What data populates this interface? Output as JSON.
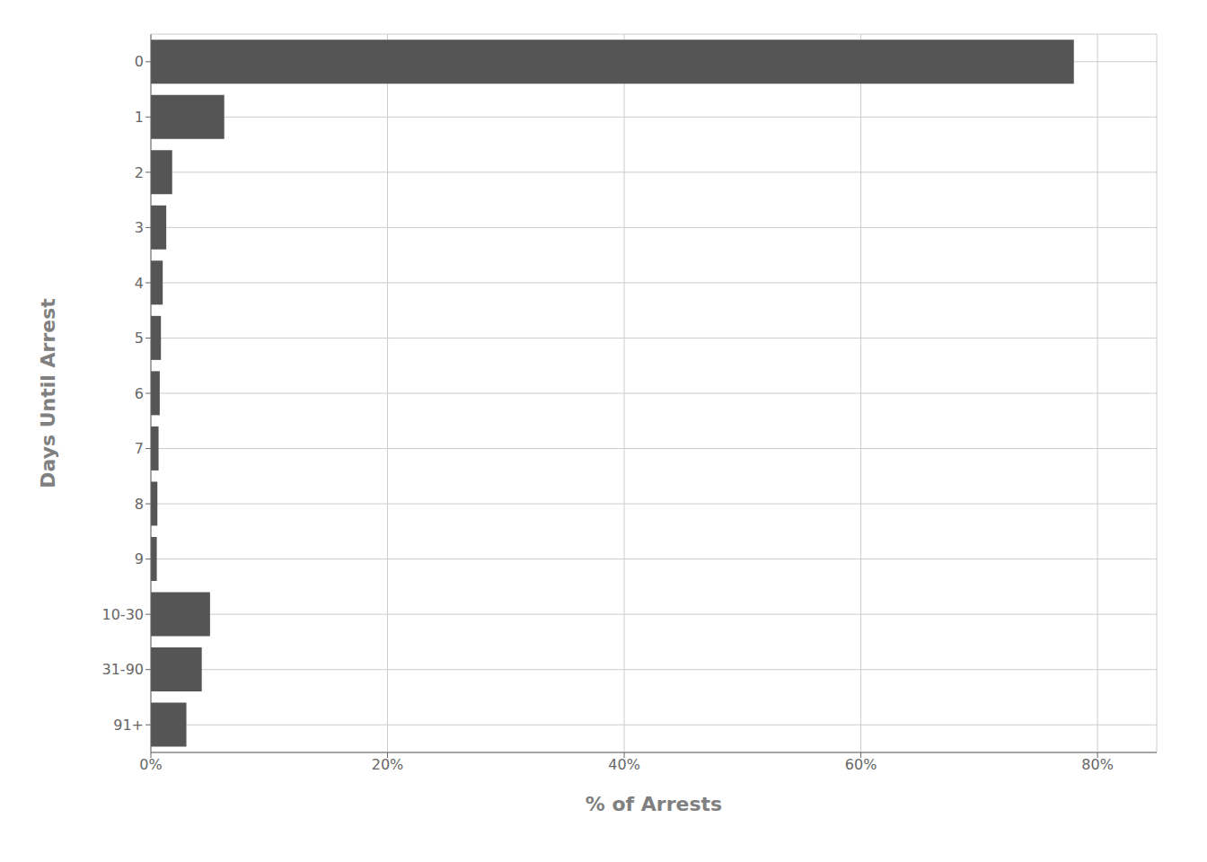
{
  "chart_data": {
    "type": "bar",
    "orientation": "horizontal",
    "categories": [
      "0",
      "1",
      "2",
      "3",
      "4",
      "5",
      "6",
      "7",
      "8",
      "9",
      "10-30",
      "31-90",
      "91+"
    ],
    "values": [
      78.0,
      6.2,
      1.8,
      1.3,
      1.0,
      0.85,
      0.75,
      0.65,
      0.55,
      0.5,
      5.0,
      4.3,
      3.0
    ],
    "color": "#555555",
    "xlabel": "% of Arrests",
    "ylabel": "Days Until Arrest",
    "xlim": [
      0,
      85
    ],
    "xticks": [
      {
        "value": 0,
        "label": "0%"
      },
      {
        "value": 20,
        "label": "20%"
      },
      {
        "value": 40,
        "label": "40%"
      },
      {
        "value": 60,
        "label": "60%"
      },
      {
        "value": 80,
        "label": "80%"
      }
    ],
    "grid": true
  }
}
